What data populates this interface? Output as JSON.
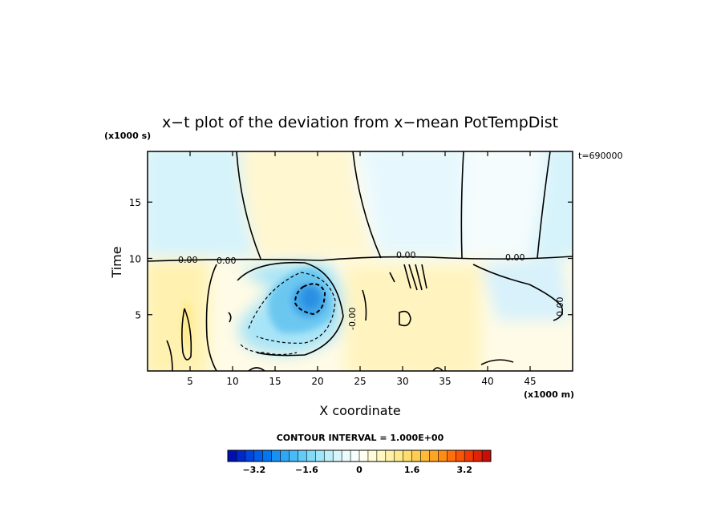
{
  "chart_data": {
    "type": "heatmap",
    "title": "x−t plot of the deviation from x−mean PotTempDist",
    "xlabel": "X coordinate",
    "ylabel": "Time",
    "x_unit": "(x1000 m)",
    "y_unit": "(x1000 s)",
    "time_label": "t=690000",
    "xlim": [
      0,
      50
    ],
    "ylim": [
      0,
      19.5
    ],
    "x_ticks": [
      5,
      10,
      15,
      20,
      25,
      30,
      35,
      40,
      45
    ],
    "x_tick_labels": [
      "5",
      "10",
      "15",
      "20",
      "25",
      "30",
      "35",
      "40",
      "45"
    ],
    "y_ticks": [
      5,
      10,
      15
    ],
    "y_tick_labels": [
      "5",
      "10",
      "15"
    ],
    "contour_interval_text": "CONTOUR INTERVAL = 1.000E+00",
    "contour_labels": [
      "0.00",
      "0.00",
      "0.00",
      "0.00",
      "-0.00",
      "0.00"
    ],
    "colorbar": {
      "range": [
        -4,
        4
      ],
      "step": 0.4,
      "tick_values": [
        -3.2,
        -1.6,
        0,
        1.6,
        3.2
      ],
      "tick_labels": [
        "−3.2",
        "−1.6",
        "0",
        "1.6",
        "3.2"
      ],
      "colors": [
        "#0010b0",
        "#0028c8",
        "#0044dc",
        "#005ee8",
        "#0078f0",
        "#1890f4",
        "#30a6f6",
        "#48baf7",
        "#62ccf8",
        "#80daf8",
        "#a0e6fa",
        "#bdeffb",
        "#d6f6fc",
        "#ebfbfd",
        "#f6fefe",
        "#fffff0",
        "#fffcd8",
        "#fff8c0",
        "#fff2a6",
        "#ffe98a",
        "#ffdc6e",
        "#ffcd52",
        "#ffbb38",
        "#ffa524",
        "#ff8c14",
        "#ff700a",
        "#fa5406",
        "#f03a06",
        "#e02206",
        "#c80e06"
      ]
    },
    "fields": [
      {
        "name": "upper-region",
        "x": [
          0,
          50
        ],
        "y": [
          10.2,
          19.5
        ],
        "value": 0.1
      },
      {
        "name": "upper-left-cold",
        "x": [
          0,
          10
        ],
        "y": [
          10.5,
          19.5
        ],
        "value": -0.5
      },
      {
        "name": "upper-right-cold",
        "x": [
          45,
          50
        ],
        "y": [
          10.5,
          19.5
        ],
        "value": -0.4
      },
      {
        "name": "upper-center-cold",
        "x": [
          26,
          37
        ],
        "y": [
          10.5,
          19.5
        ],
        "value": -0.3
      },
      {
        "name": "cold-core",
        "x": [
          15.5,
          23
        ],
        "y": [
          4,
          10
        ],
        "value": -2.3
      },
      {
        "name": "cold-core-peak",
        "x": [
          18,
          21
        ],
        "y": [
          6,
          8.5
        ],
        "value": -2.8
      },
      {
        "name": "warm-lower-left",
        "x": [
          0,
          8
        ],
        "y": [
          0,
          10
        ],
        "value": 0.5
      },
      {
        "name": "warm-lower-right",
        "x": [
          24,
          40
        ],
        "y": [
          0,
          10
        ],
        "value": 0.3
      },
      {
        "name": "cold-right-patch",
        "x": [
          40,
          48
        ],
        "y": [
          4,
          10
        ],
        "value": -0.4
      }
    ]
  }
}
